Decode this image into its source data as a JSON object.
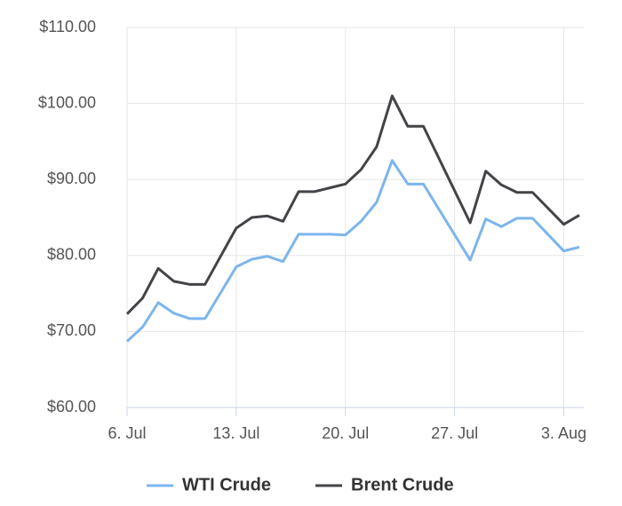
{
  "chart_data": {
    "type": "line",
    "x": [
      "07-06",
      "07-07",
      "07-08",
      "07-09",
      "07-10",
      "07-11",
      "07-13",
      "07-14",
      "07-15",
      "07-16",
      "07-17",
      "07-18",
      "07-19",
      "07-20",
      "07-21",
      "07-22",
      "07-23",
      "07-24",
      "07-25",
      "07-28",
      "07-29",
      "07-30",
      "07-31",
      "08-01",
      "08-03",
      "08-04"
    ],
    "series": [
      {
        "name": "WTI Crude",
        "color": "#7cb5ec",
        "values": [
          68.7,
          70.6,
          73.8,
          72.4,
          71.7,
          71.7,
          78.5,
          79.5,
          79.9,
          79.2,
          82.8,
          82.8,
          82.8,
          82.7,
          84.5,
          87.0,
          92.5,
          89.4,
          89.4,
          79.4,
          84.8,
          83.8,
          84.9,
          84.9,
          80.6,
          81.1
        ]
      },
      {
        "name": "Brent Crude",
        "color": "#434348",
        "values": [
          72.3,
          74.4,
          78.3,
          76.6,
          76.2,
          76.2,
          83.6,
          85.0,
          85.2,
          84.5,
          88.4,
          88.4,
          88.9,
          89.4,
          91.3,
          94.3,
          101.0,
          97.0,
          97.0,
          84.3,
          91.1,
          89.3,
          88.3,
          88.3,
          84.1,
          85.3
        ]
      }
    ],
    "xlim": [
      "07-06",
      "08-04"
    ],
    "xticks": [
      {
        "value": "07-06",
        "label": "6. Jul"
      },
      {
        "value": "07-13",
        "label": "13. Jul"
      },
      {
        "value": "07-20",
        "label": "20. Jul"
      },
      {
        "value": "07-27",
        "label": "27. Jul"
      },
      {
        "value": "08-03",
        "label": "3. Aug"
      }
    ],
    "ylim": [
      60,
      110
    ],
    "yticks": [
      {
        "value": 60,
        "label": "$60.00"
      },
      {
        "value": 70,
        "label": "$70.00"
      },
      {
        "value": 80,
        "label": "$80.00"
      },
      {
        "value": 90,
        "label": "$90.00"
      },
      {
        "value": 100,
        "label": "$100.00"
      },
      {
        "value": 110,
        "label": "$110.00"
      }
    ],
    "grid": true,
    "legend": "bottom"
  }
}
